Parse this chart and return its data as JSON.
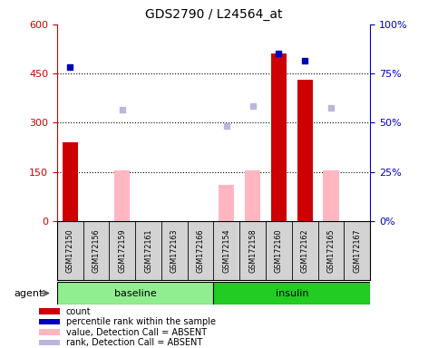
{
  "title": "GDS2790 / L24564_at",
  "samples": [
    "GSM172150",
    "GSM172156",
    "GSM172159",
    "GSM172161",
    "GSM172163",
    "GSM172166",
    "GSM172154",
    "GSM172158",
    "GSM172160",
    "GSM172162",
    "GSM172165",
    "GSM172167"
  ],
  "groups": [
    {
      "label": "baseline",
      "color": "#90EE90",
      "start": 0,
      "end": 6
    },
    {
      "label": "insulin",
      "color": "#22CC22",
      "start": 6,
      "end": 12
    }
  ],
  "agent_label": "agent",
  "red_bars": [
    240,
    null,
    null,
    null,
    null,
    null,
    null,
    null,
    510,
    430,
    null,
    null
  ],
  "pink_bars": [
    null,
    null,
    155,
    null,
    null,
    null,
    110,
    155,
    null,
    null,
    155,
    null
  ],
  "blue_squares": [
    470,
    null,
    null,
    null,
    null,
    null,
    null,
    null,
    510,
    490,
    null,
    null
  ],
  "lavender_squares": [
    null,
    null,
    340,
    null,
    null,
    null,
    290,
    350,
    null,
    null,
    345,
    null
  ],
  "ylim_left": [
    0,
    600
  ],
  "yticks_left": [
    0,
    150,
    300,
    450,
    600
  ],
  "ytick_labels_left": [
    "0",
    "150",
    "300",
    "450",
    "600"
  ],
  "ytick_labels_right": [
    "0%",
    "25%",
    "50%",
    "75%",
    "100%"
  ],
  "grid_values": [
    150,
    300,
    450
  ],
  "left_axis_color": "#CC0000",
  "right_axis_color": "#0000BB",
  "legend_items": [
    {
      "color": "#CC0000",
      "label": "count"
    },
    {
      "color": "#0000BB",
      "label": "percentile rank within the sample"
    },
    {
      "color": "#FFB6C1",
      "label": "value, Detection Call = ABSENT"
    },
    {
      "color": "#B8B8DD",
      "label": "rank, Detection Call = ABSENT"
    }
  ]
}
